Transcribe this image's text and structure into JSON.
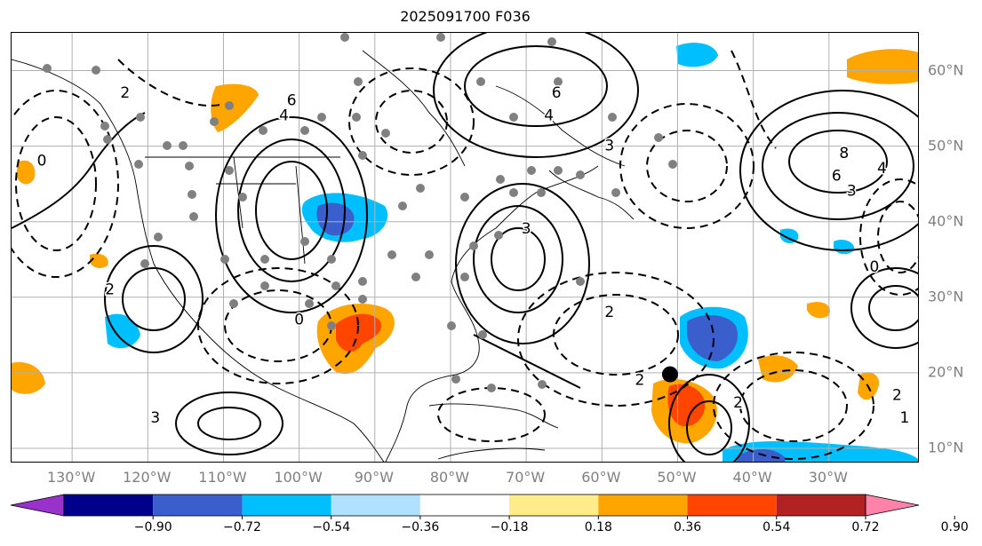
{
  "title": "2025091700 F036",
  "map": {
    "lon_range": [
      -138,
      -18
    ],
    "lat_range": [
      8,
      65
    ],
    "longitude_labels": [
      "130°W",
      "120°W",
      "110°W",
      "100°W",
      "90°W",
      "80°W",
      "70°W",
      "60°W",
      "50°W",
      "40°W",
      "30°W"
    ],
    "longitude_values": [
      -130,
      -120,
      -110,
      -100,
      -90,
      -80,
      -70,
      -60,
      -50,
      -40,
      -30
    ],
    "latitude_labels": [
      "60°N",
      "50°N",
      "40°N",
      "30°N",
      "20°N",
      "10°N"
    ],
    "latitude_values": [
      60,
      50,
      40,
      30,
      20,
      10
    ],
    "grid": true,
    "contour_labels": [
      {
        "text": "6",
        "lon": -101,
        "lat": 56
      },
      {
        "text": "4",
        "lon": -102,
        "lat": 54
      },
      {
        "text": "6",
        "lon": -66,
        "lat": 57
      },
      {
        "text": "4",
        "lon": -67,
        "lat": 54
      },
      {
        "text": "3",
        "lon": -59,
        "lat": 50
      },
      {
        "text": "8",
        "lon": -28,
        "lat": 49
      },
      {
        "text": "6",
        "lon": -29,
        "lat": 46
      },
      {
        "text": "4",
        "lon": -23,
        "lat": 47
      },
      {
        "text": "3",
        "lon": -27,
        "lat": 44
      },
      {
        "text": "2",
        "lon": -123,
        "lat": 57
      },
      {
        "text": "2",
        "lon": -125,
        "lat": 31
      },
      {
        "text": "0",
        "lon": -134,
        "lat": 48
      },
      {
        "text": "2",
        "lon": -59,
        "lat": 28
      },
      {
        "text": "2",
        "lon": -55,
        "lat": 19
      },
      {
        "text": "1",
        "lon": -20,
        "lat": 14
      },
      {
        "text": "2",
        "lon": -21,
        "lat": 17
      },
      {
        "text": "2",
        "lon": -42,
        "lat": 16
      },
      {
        "text": "0",
        "lon": -100,
        "lat": 27
      },
      {
        "text": "3",
        "lon": -70,
        "lat": 39
      },
      {
        "text": "3",
        "lon": -119,
        "lat": 14
      },
      {
        "text": "0",
        "lon": -24,
        "lat": 34
      }
    ],
    "center_marker": {
      "lon": -51,
      "lat": 19.8
    }
  },
  "colorbar": {
    "colors": [
      "#9932cc",
      "#00008b",
      "#3a5fcd",
      "#00bfff",
      "#b0e2ff",
      "#ffffff",
      "#ffec8b",
      "#ffa500",
      "#ff4500",
      "#b22222",
      "#ff82ab"
    ],
    "tick_labels": [
      "−0.90",
      "−0.72",
      "−0.54",
      "−0.36",
      "−0.18",
      "0.18",
      "0.36",
      "0.54",
      "0.72",
      "0.90"
    ],
    "extend": "both"
  }
}
